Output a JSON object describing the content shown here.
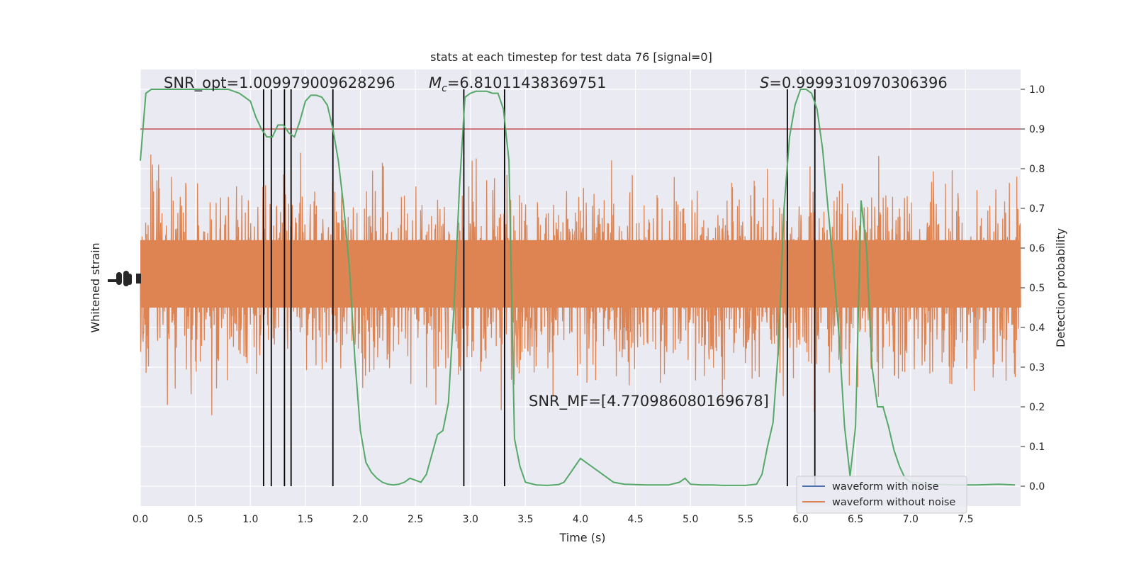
{
  "chart_data": {
    "type": "line",
    "title": "stats at each timestep for test data 76 [signal=0]",
    "xlabel": "Time (s)",
    "ylabel_left": "Whitened strain",
    "ylabel_right": "Detection probability",
    "xlim": [
      0.0,
      8.0
    ],
    "ylim_right": [
      -0.05,
      1.05
    ],
    "x_ticks": [
      "0.0",
      "0.5",
      "1.0",
      "1.5",
      "2.0",
      "2.5",
      "3.0",
      "3.5",
      "4.0",
      "4.5",
      "5.0",
      "5.5",
      "6.0",
      "6.5",
      "7.0",
      "7.5"
    ],
    "y_ticks_right": [
      "0.0",
      "0.1",
      "0.2",
      "0.3",
      "0.4",
      "0.5",
      "0.6",
      "0.7",
      "0.8",
      "0.9",
      "1.0"
    ],
    "threshold": 0.9,
    "vertical_markers": [
      1.12,
      1.19,
      1.31,
      1.37,
      1.75,
      2.94,
      3.31,
      5.88,
      6.13
    ],
    "annotations": {
      "snr_opt": "SNR_opt=1.009979009628296",
      "mc_symbol": "M",
      "mc_sub": "c",
      "mc_value": "=6.81011438369751",
      "s_symbol": "S",
      "s_value": "=0.9999310970306396",
      "snr_mf": "SNR_MF=[4.770986080169678]"
    },
    "legend": {
      "placement": "lower-right",
      "entries": [
        {
          "name": "waveform with noise",
          "color": "#4c72b0"
        },
        {
          "name": "waveform without noise",
          "color": "#dd8452"
        }
      ]
    },
    "series": [
      {
        "name": "detection probability",
        "color": "#55a868",
        "x": [
          0.0,
          0.05,
          0.1,
          0.2,
          0.3,
          0.4,
          0.5,
          0.6,
          0.7,
          0.8,
          0.9,
          1.0,
          1.05,
          1.1,
          1.15,
          1.2,
          1.25,
          1.3,
          1.35,
          1.4,
          1.45,
          1.5,
          1.55,
          1.6,
          1.65,
          1.7,
          1.75,
          1.8,
          1.85,
          1.9,
          1.95,
          2.0,
          2.05,
          2.1,
          2.15,
          2.2,
          2.25,
          2.3,
          2.35,
          2.4,
          2.45,
          2.5,
          2.55,
          2.6,
          2.65,
          2.7,
          2.75,
          2.8,
          2.85,
          2.9,
          2.95,
          3.0,
          3.05,
          3.1,
          3.15,
          3.2,
          3.25,
          3.3,
          3.35,
          3.4,
          3.45,
          3.5,
          3.6,
          3.7,
          3.8,
          3.85,
          3.9,
          3.95,
          4.0,
          4.05,
          4.1,
          4.15,
          4.2,
          4.25,
          4.3,
          4.4,
          4.6,
          4.8,
          4.9,
          4.95,
          5.0,
          5.1,
          5.2,
          5.3,
          5.4,
          5.5,
          5.6,
          5.65,
          5.7,
          5.75,
          5.8,
          5.85,
          5.9,
          5.95,
          6.0,
          6.05,
          6.1,
          6.15,
          6.2,
          6.25,
          6.3,
          6.35,
          6.4,
          6.45,
          6.5,
          6.55,
          6.6,
          6.65,
          6.7,
          6.75,
          6.8,
          6.85,
          6.9,
          6.95,
          7.0,
          7.2,
          7.4,
          7.6,
          7.8,
          7.95
        ],
        "y": [
          0.82,
          0.99,
          1.0,
          1.0,
          1.0,
          1.0,
          1.0,
          1.0,
          1.0,
          1.0,
          0.99,
          0.97,
          0.93,
          0.9,
          0.88,
          0.88,
          0.91,
          0.91,
          0.89,
          0.88,
          0.92,
          0.97,
          0.985,
          0.985,
          0.98,
          0.96,
          0.9,
          0.82,
          0.7,
          0.55,
          0.32,
          0.14,
          0.06,
          0.035,
          0.02,
          0.01,
          0.005,
          0.003,
          0.005,
          0.01,
          0.02,
          0.015,
          0.01,
          0.03,
          0.08,
          0.13,
          0.14,
          0.21,
          0.45,
          0.75,
          0.98,
          0.99,
          0.995,
          0.995,
          0.995,
          0.99,
          0.99,
          0.95,
          0.82,
          0.12,
          0.05,
          0.01,
          0.003,
          0.002,
          0.004,
          0.01,
          0.03,
          0.05,
          0.07,
          0.06,
          0.05,
          0.04,
          0.03,
          0.02,
          0.01,
          0.005,
          0.003,
          0.003,
          0.01,
          0.02,
          0.005,
          0.003,
          0.003,
          0.002,
          0.002,
          0.002,
          0.005,
          0.03,
          0.1,
          0.16,
          0.35,
          0.7,
          0.88,
          0.96,
          1.0,
          1.0,
          0.99,
          0.95,
          0.85,
          0.7,
          0.55,
          0.38,
          0.15,
          0.025,
          0.15,
          0.72,
          0.6,
          0.3,
          0.2,
          0.2,
          0.15,
          0.09,
          0.05,
          0.02,
          0.01,
          0.005,
          0.003,
          0.003,
          0.005,
          0.003
        ]
      }
    ]
  }
}
